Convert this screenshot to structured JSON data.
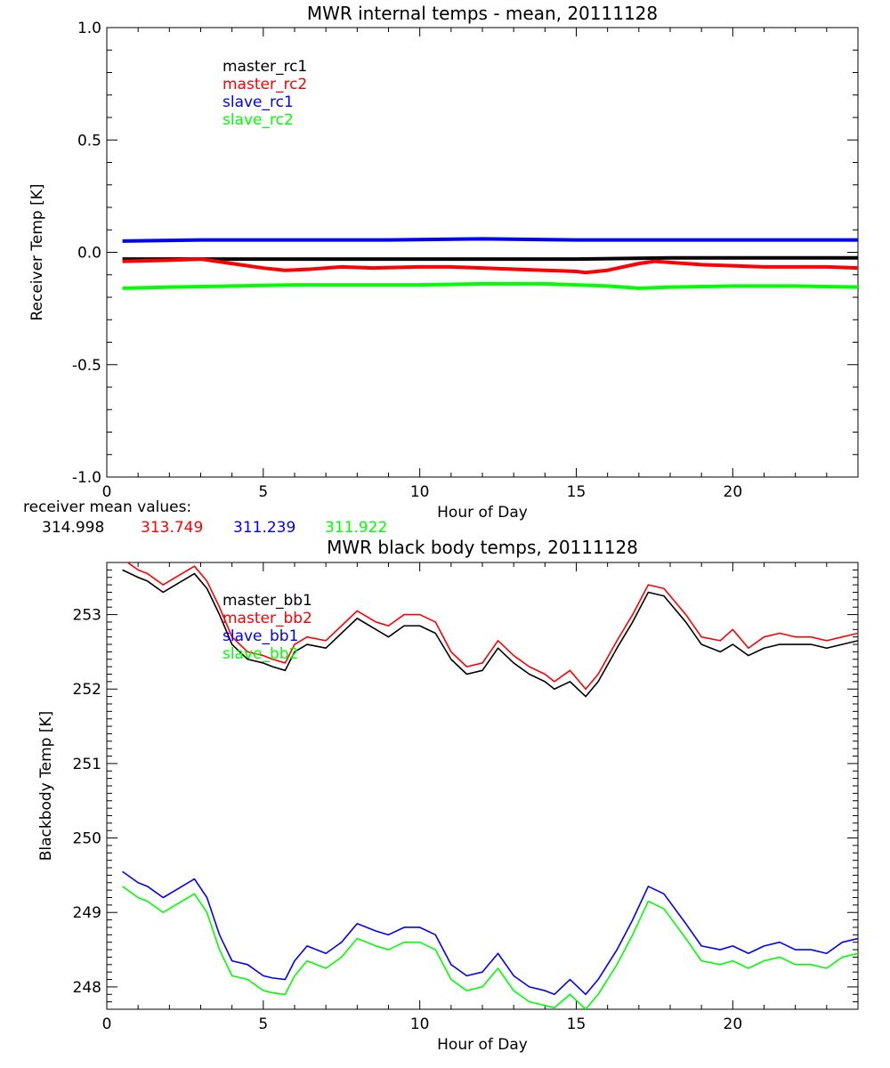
{
  "chart_data": [
    {
      "type": "line",
      "title": "MWR internal temps - mean, 20111128",
      "xlabel": "Hour of Day",
      "ylabel": "Receiver Temp [K]",
      "xlim": [
        0,
        24
      ],
      "ylim": [
        -1.0,
        1.0
      ],
      "x_ticks": [
        0,
        5,
        10,
        15,
        20
      ],
      "y_ticks": [
        -1.0,
        -0.5,
        0.0,
        0.5,
        1.0
      ],
      "y_tick_labels": [
        "-1.0",
        "-0.5",
        "0.0",
        "0.5",
        "1.0"
      ],
      "legend_position": "top-left",
      "grid": false,
      "series": [
        {
          "name": "master_rc1",
          "color": "#000000",
          "x": [
            0.5,
            3,
            6,
            9,
            12,
            15,
            18,
            21,
            24
          ],
          "y": [
            -0.03,
            -0.03,
            -0.03,
            -0.03,
            -0.03,
            -0.03,
            -0.025,
            -0.025,
            -0.025
          ]
        },
        {
          "name": "master_rc2",
          "color": "#ff0000",
          "x": [
            0.5,
            2,
            3,
            4,
            5,
            5.7,
            6.5,
            7.5,
            8.5,
            10,
            11,
            12,
            13,
            14,
            15,
            15.3,
            16,
            17,
            17.5,
            18,
            19,
            20,
            21,
            22,
            23,
            24
          ],
          "y": [
            -0.04,
            -0.035,
            -0.03,
            -0.05,
            -0.07,
            -0.08,
            -0.075,
            -0.065,
            -0.07,
            -0.065,
            -0.065,
            -0.07,
            -0.075,
            -0.08,
            -0.085,
            -0.09,
            -0.08,
            -0.05,
            -0.04,
            -0.045,
            -0.055,
            -0.06,
            -0.065,
            -0.065,
            -0.065,
            -0.07
          ]
        },
        {
          "name": "slave_rc1",
          "color": "#0000ff",
          "x": [
            0.5,
            3,
            6,
            9,
            12,
            15,
            18,
            21,
            24
          ],
          "y": [
            0.05,
            0.055,
            0.055,
            0.055,
            0.06,
            0.055,
            0.055,
            0.055,
            0.055
          ]
        },
        {
          "name": "slave_rc2",
          "color": "#00ff00",
          "x": [
            0.5,
            2,
            4,
            6,
            8,
            10,
            12,
            14,
            16,
            17,
            18,
            20,
            22,
            24
          ],
          "y": [
            -0.16,
            -0.155,
            -0.15,
            -0.145,
            -0.145,
            -0.145,
            -0.14,
            -0.14,
            -0.15,
            -0.16,
            -0.155,
            -0.15,
            -0.15,
            -0.155
          ]
        }
      ]
    },
    {
      "type": "line",
      "title": "MWR black body temps, 20111128",
      "xlabel": "Hour of Day",
      "ylabel": "Blackbody Temp [K]",
      "xlim": [
        0,
        24
      ],
      "ylim": [
        247.7,
        253.7
      ],
      "x_ticks": [
        0,
        5,
        10,
        15,
        20
      ],
      "y_ticks": [
        248,
        249,
        250,
        251,
        252,
        253
      ],
      "y_tick_labels": [
        "248",
        "249",
        "250",
        "251",
        "252",
        "253"
      ],
      "legend_position": "top-left",
      "grid": false,
      "series": [
        {
          "name": "master_bb1",
          "color": "#000000",
          "x": [
            0.5,
            1,
            1.3,
            1.8,
            2.2,
            2.8,
            3.2,
            3.6,
            4.0,
            4.5,
            5.0,
            5.3,
            5.7,
            6.0,
            6.4,
            7.0,
            7.5,
            8.0,
            8.6,
            9.0,
            9.5,
            10.0,
            10.5,
            11.0,
            11.5,
            12.0,
            12.5,
            13.0,
            13.5,
            14.0,
            14.3,
            14.8,
            15.3,
            15.7,
            16.3,
            16.8,
            17.3,
            17.8,
            18.5,
            19.0,
            19.6,
            20.0,
            20.5,
            21.0,
            21.5,
            22.0,
            22.5,
            23.0,
            23.5,
            24.0
          ],
          "y": [
            253.6,
            253.5,
            253.45,
            253.3,
            253.4,
            253.55,
            253.35,
            253.0,
            252.6,
            252.4,
            252.35,
            252.3,
            252.25,
            252.5,
            252.6,
            252.55,
            252.75,
            252.95,
            252.8,
            252.7,
            252.85,
            252.85,
            252.75,
            252.4,
            252.2,
            252.25,
            252.55,
            252.35,
            252.2,
            252.1,
            252.0,
            252.1,
            251.9,
            252.1,
            252.55,
            252.9,
            253.3,
            253.25,
            252.9,
            252.6,
            252.5,
            252.6,
            252.45,
            252.55,
            252.6,
            252.6,
            252.6,
            252.55,
            252.6,
            252.65
          ]
        },
        {
          "name": "master_bb2",
          "color": "#ff0000",
          "x": [
            0.5,
            1,
            1.3,
            1.8,
            2.2,
            2.8,
            3.2,
            3.6,
            4.0,
            4.5,
            5.0,
            5.3,
            5.7,
            6.0,
            6.4,
            7.0,
            7.5,
            8.0,
            8.6,
            9.0,
            9.5,
            10.0,
            10.5,
            11.0,
            11.5,
            12.0,
            12.5,
            13.0,
            13.5,
            14.0,
            14.3,
            14.8,
            15.3,
            15.7,
            16.3,
            16.8,
            17.3,
            17.8,
            18.5,
            19.0,
            19.6,
            20.0,
            20.5,
            21.0,
            21.5,
            22.0,
            22.5,
            23.0,
            23.5,
            24.0
          ],
          "y": [
            253.75,
            253.6,
            253.55,
            253.4,
            253.5,
            253.65,
            253.45,
            253.1,
            252.7,
            252.5,
            252.45,
            252.4,
            252.35,
            252.6,
            252.7,
            252.65,
            252.85,
            253.05,
            252.9,
            252.85,
            253.0,
            253.0,
            252.9,
            252.5,
            252.3,
            252.35,
            252.65,
            252.45,
            252.3,
            252.2,
            252.1,
            252.25,
            252.0,
            252.2,
            252.65,
            253.0,
            253.4,
            253.35,
            253.0,
            252.7,
            252.65,
            252.8,
            252.55,
            252.7,
            252.75,
            252.7,
            252.7,
            252.65,
            252.7,
            252.75
          ]
        },
        {
          "name": "slave_bb1",
          "color": "#0000ff",
          "x": [
            0.5,
            1,
            1.3,
            1.8,
            2.2,
            2.8,
            3.2,
            3.6,
            4.0,
            4.5,
            5.0,
            5.3,
            5.7,
            6.0,
            6.4,
            7.0,
            7.5,
            8.0,
            8.6,
            9.0,
            9.5,
            10.0,
            10.5,
            11.0,
            11.5,
            12.0,
            12.5,
            13.0,
            13.5,
            14.0,
            14.3,
            14.8,
            15.3,
            15.7,
            16.3,
            16.8,
            17.3,
            17.8,
            18.5,
            19.0,
            19.6,
            20.0,
            20.5,
            21.0,
            21.5,
            22.0,
            22.5,
            23.0,
            23.5,
            24.0
          ],
          "y": [
            249.55,
            249.4,
            249.35,
            249.2,
            249.3,
            249.45,
            249.2,
            248.7,
            248.35,
            248.3,
            248.15,
            248.12,
            248.1,
            248.35,
            248.55,
            248.45,
            248.6,
            248.85,
            248.75,
            248.7,
            248.8,
            248.8,
            248.7,
            248.3,
            248.15,
            248.2,
            248.45,
            248.15,
            248.0,
            247.95,
            247.9,
            248.1,
            247.9,
            248.1,
            248.5,
            248.9,
            249.35,
            249.25,
            248.85,
            248.55,
            248.5,
            248.55,
            248.45,
            248.55,
            248.6,
            248.5,
            248.5,
            248.45,
            248.6,
            248.65
          ]
        },
        {
          "name": "slave_bb2",
          "color": "#00ff00",
          "x": [
            0.5,
            1,
            1.3,
            1.8,
            2.2,
            2.8,
            3.2,
            3.6,
            4.0,
            4.5,
            5.0,
            5.3,
            5.7,
            6.0,
            6.4,
            7.0,
            7.5,
            8.0,
            8.6,
            9.0,
            9.5,
            10.0,
            10.5,
            11.0,
            11.5,
            12.0,
            12.5,
            13.0,
            13.5,
            14.0,
            14.3,
            14.8,
            15.3,
            15.7,
            16.3,
            16.8,
            17.3,
            17.8,
            18.5,
            19.0,
            19.6,
            20.0,
            20.5,
            21.0,
            21.5,
            22.0,
            22.5,
            23.0,
            23.5,
            24.0
          ],
          "y": [
            249.35,
            249.2,
            249.15,
            249.0,
            249.1,
            249.25,
            249.0,
            248.5,
            248.15,
            248.1,
            247.95,
            247.92,
            247.9,
            248.15,
            248.35,
            248.25,
            248.4,
            248.65,
            248.55,
            248.5,
            248.6,
            248.6,
            248.5,
            248.1,
            247.95,
            248.0,
            248.25,
            247.95,
            247.8,
            247.75,
            247.72,
            247.9,
            247.7,
            247.9,
            248.3,
            248.7,
            249.15,
            249.05,
            248.65,
            248.35,
            248.3,
            248.35,
            248.25,
            248.35,
            248.4,
            248.3,
            248.3,
            248.25,
            248.4,
            248.45
          ]
        }
      ]
    }
  ],
  "receiver_mean": {
    "label": "receiver mean values:",
    "values": [
      {
        "text": "314.998",
        "color": "#000000"
      },
      {
        "text": "313.749",
        "color": "#ff0000"
      },
      {
        "text": "311.239",
        "color": "#0000ff"
      },
      {
        "text": "311.922",
        "color": "#00ff00"
      }
    ]
  }
}
